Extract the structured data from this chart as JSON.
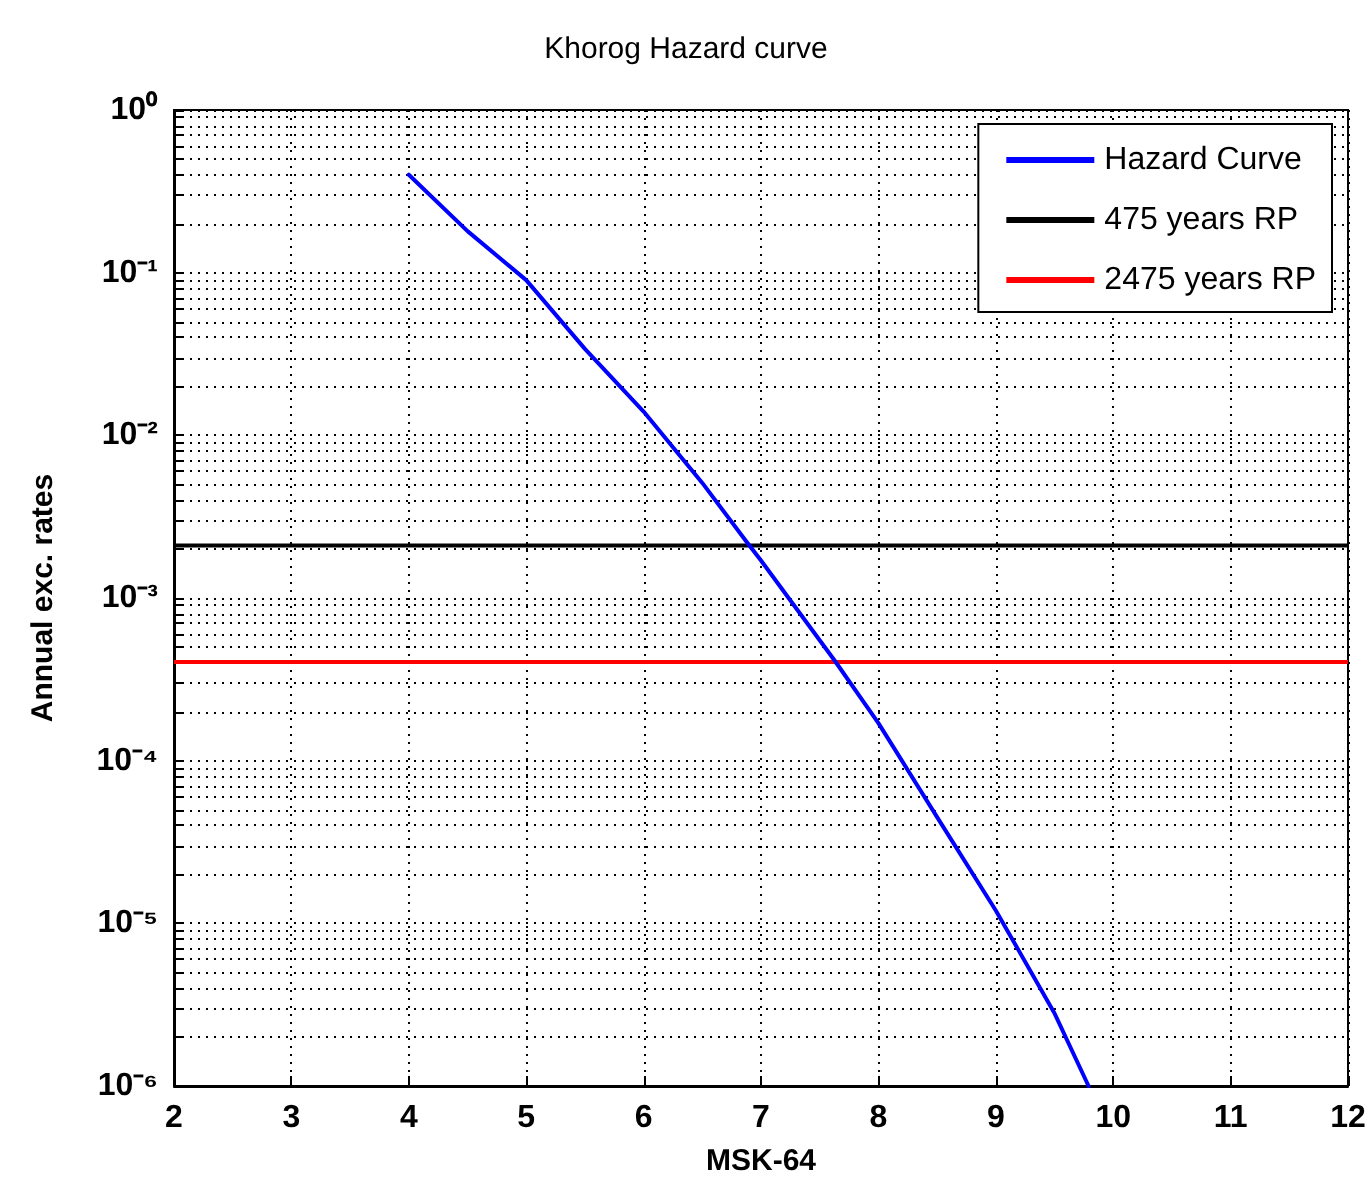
{
  "chart_data": {
    "type": "line",
    "title": "Khorog Hazard curve",
    "xlabel": "MSK-64",
    "ylabel": "Annual exc. rates",
    "log": "y",
    "grid": true,
    "legend": "top right",
    "line_style": "solid",
    "marker": "none",
    "xlim": [
      2,
      12
    ],
    "xticks": [
      2,
      3,
      4,
      5,
      6,
      7,
      8,
      9,
      10,
      11,
      12
    ],
    "ylim": [
      1e-06,
      1
    ],
    "yticks": [
      {
        "value": 1e-06,
        "label": "10⁻⁶"
      },
      {
        "value": 2e-06,
        "label": null
      },
      {
        "value": 3e-06,
        "label": null
      },
      {
        "value": 4e-06,
        "label": null
      },
      {
        "value": 5e-06,
        "label": null
      },
      {
        "value": 6e-06,
        "label": null
      },
      {
        "value": 7e-06,
        "label": null
      },
      {
        "value": 8e-06,
        "label": null
      },
      {
        "value": 9e-06,
        "label": null
      },
      {
        "value": 1e-05,
        "label": "10⁻⁵"
      },
      {
        "value": 2e-05,
        "label": null
      },
      {
        "value": 3e-05,
        "label": null
      },
      {
        "value": 4e-05,
        "label": null
      },
      {
        "value": 5e-05,
        "label": null
      },
      {
        "value": 6e-05,
        "label": null
      },
      {
        "value": 7e-05,
        "label": null
      },
      {
        "value": 8e-05,
        "label": null
      },
      {
        "value": 9e-05,
        "label": null
      },
      {
        "value": 0.0001,
        "label": "10⁻⁴"
      },
      {
        "value": 0.0002,
        "label": null
      },
      {
        "value": 0.0003,
        "label": null
      },
      {
        "value": 0.0004,
        "label": null
      },
      {
        "value": 0.0005,
        "label": null
      },
      {
        "value": 0.0006,
        "label": null
      },
      {
        "value": 0.0007,
        "label": null
      },
      {
        "value": 0.0008,
        "label": null
      },
      {
        "value": 0.0009,
        "label": null
      },
      {
        "value": 0.001,
        "label": "10⁻³"
      },
      {
        "value": 0.002,
        "label": null
      },
      {
        "value": 0.003,
        "label": null
      },
      {
        "value": 0.004,
        "label": null
      },
      {
        "value": 0.005,
        "label": null
      },
      {
        "value": 0.006,
        "label": null
      },
      {
        "value": 0.007,
        "label": null
      },
      {
        "value": 0.008,
        "label": null
      },
      {
        "value": 0.009,
        "label": null
      },
      {
        "value": 0.01,
        "label": "10⁻²"
      },
      {
        "value": 0.02,
        "label": null
      },
      {
        "value": 0.03,
        "label": null
      },
      {
        "value": 0.04,
        "label": null
      },
      {
        "value": 0.05,
        "label": null
      },
      {
        "value": 0.06,
        "label": null
      },
      {
        "value": 0.07,
        "label": null
      },
      {
        "value": 0.08,
        "label": null
      },
      {
        "value": 0.09,
        "label": null
      },
      {
        "value": 0.1,
        "label": "10⁻¹"
      },
      {
        "value": 0.2,
        "label": null
      },
      {
        "value": 0.3,
        "label": null
      },
      {
        "value": 0.4,
        "label": null
      },
      {
        "value": 0.5,
        "label": null
      },
      {
        "value": 0.6,
        "label": null
      },
      {
        "value": 0.7,
        "label": null
      },
      {
        "value": 0.8,
        "label": null
      },
      {
        "value": 0.9,
        "label": null
      },
      {
        "value": 1,
        "label": "10⁰"
      }
    ],
    "x": [
      4,
      4.5,
      5,
      5.5,
      6,
      6.5,
      6.88,
      7,
      7.5,
      7.63,
      8,
      8.2,
      8.5,
      9,
      9.5,
      9.79
    ],
    "series": [
      {
        "name": "Hazard Curve",
        "color": "#0000ff",
        "values": [
          0.4,
          0.18,
          0.09,
          0.034,
          0.014,
          0.0051,
          0.0022,
          0.0017,
          0.00055,
          0.00041,
          0.00017,
          0.0001,
          4.5e-05,
          1.2e-05,
          2.8e-06,
          1e-06
        ]
      }
    ],
    "ref_lines": [
      {
        "axis": "y",
        "value": 0.0021,
        "label": "475 years RP",
        "color": "#000000"
      },
      {
        "axis": "y",
        "value": 0.000404,
        "label": "2475 years RP",
        "color": "#ff0000"
      }
    ]
  }
}
